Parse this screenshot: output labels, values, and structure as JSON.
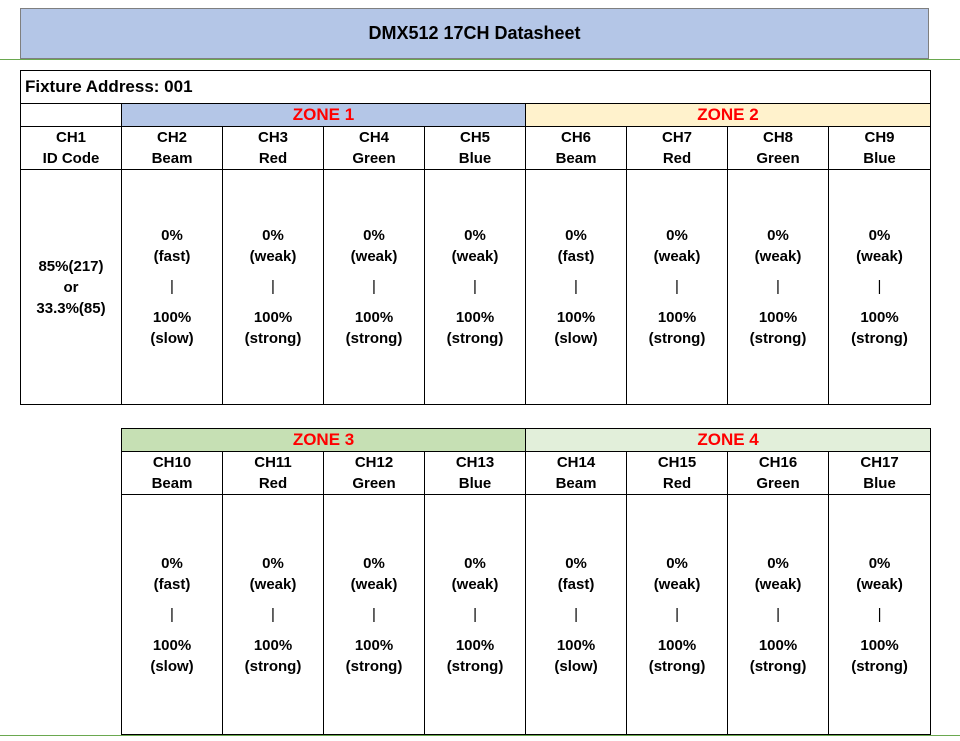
{
  "header": {
    "title": "DMX512 17CH Datasheet"
  },
  "fixture": {
    "label": "Fixture Address: 001"
  },
  "ch1": {
    "name": "CH1",
    "sub": "ID Code",
    "val1": "85%(217)",
    "val2": "or",
    "val3": "33.3%(85)"
  },
  "zones": {
    "z1": "ZONE 1",
    "z2": "ZONE 2",
    "z3": "ZONE 3",
    "z4": "ZONE 4"
  },
  "channels": [
    {
      "name": "CH2",
      "sub": "Beam",
      "top": "0%",
      "top2": "(fast)",
      "bar": "|",
      "bot": "100%",
      "bot2": "(slow)"
    },
    {
      "name": "CH3",
      "sub": "Red",
      "top": "0%",
      "top2": "(weak)",
      "bar": "|",
      "bot": "100%",
      "bot2": "(strong)"
    },
    {
      "name": "CH4",
      "sub": "Green",
      "top": "0%",
      "top2": "(weak)",
      "bar": "|",
      "bot": "100%",
      "bot2": "(strong)"
    },
    {
      "name": "CH5",
      "sub": "Blue",
      "top": "0%",
      "top2": "(weak)",
      "bar": "|",
      "bot": "100%",
      "bot2": "(strong)"
    },
    {
      "name": "CH6",
      "sub": "Beam",
      "top": "0%",
      "top2": "(fast)",
      "bar": "|",
      "bot": "100%",
      "bot2": "(slow)"
    },
    {
      "name": "CH7",
      "sub": "Red",
      "top": "0%",
      "top2": "(weak)",
      "bar": "|",
      "bot": "100%",
      "bot2": "(strong)"
    },
    {
      "name": "CH8",
      "sub": "Green",
      "top": "0%",
      "top2": "(weak)",
      "bar": "|",
      "bot": "100%",
      "bot2": "(strong)"
    },
    {
      "name": "CH9",
      "sub": "Blue",
      "top": "0%",
      "top2": "(weak)",
      "bar": "|",
      "bot": "100%",
      "bot2": "(strong)"
    },
    {
      "name": "CH10",
      "sub": "Beam",
      "top": "0%",
      "top2": "(fast)",
      "bar": "|",
      "bot": "100%",
      "bot2": "(slow)"
    },
    {
      "name": "CH11",
      "sub": "Red",
      "top": "0%",
      "top2": "(weak)",
      "bar": "|",
      "bot": "100%",
      "bot2": "(strong)"
    },
    {
      "name": "CH12",
      "sub": "Green",
      "top": "0%",
      "top2": "(weak)",
      "bar": "|",
      "bot": "100%",
      "bot2": "(strong)"
    },
    {
      "name": "CH13",
      "sub": "Blue",
      "top": "0%",
      "top2": "(weak)",
      "bar": "|",
      "bot": "100%",
      "bot2": "(strong)"
    },
    {
      "name": "CH14",
      "sub": "Beam",
      "top": "0%",
      "top2": "(fast)",
      "bar": "|",
      "bot": "100%",
      "bot2": "(slow)"
    },
    {
      "name": "CH15",
      "sub": "Red",
      "top": "0%",
      "top2": "(weak)",
      "bar": "|",
      "bot": "100%",
      "bot2": "(strong)"
    },
    {
      "name": "CH16",
      "sub": "Green",
      "top": "0%",
      "top2": "(weak)",
      "bar": "|",
      "bot": "100%",
      "bot2": "(strong)"
    },
    {
      "name": "CH17",
      "sub": "Blue",
      "top": "0%",
      "top2": "(weak)",
      "bar": "|",
      "bot": "100%",
      "bot2": "(strong)"
    }
  ],
  "colors": {
    "zone1_bg": "#b4c6e7",
    "zone2_bg": "#fff2cc",
    "zone3_bg": "#c6e0b4",
    "zone4_bg": "#e2efda",
    "zone_text": "#ff0000",
    "title_bg": "#b4c6e7"
  }
}
